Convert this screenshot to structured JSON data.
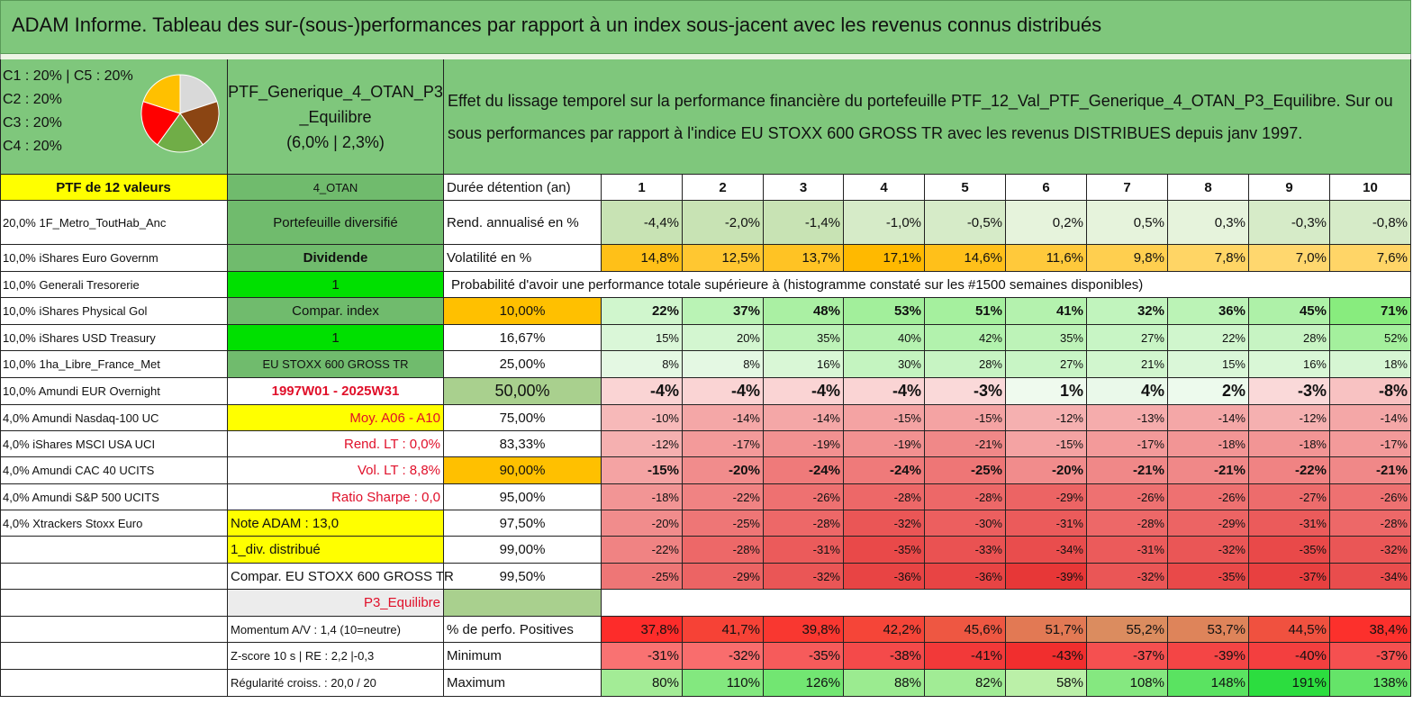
{
  "title": "ADAM Informe. Tableau des sur-(sous-)performances par rapport à un index sous-jacent avec les revenus connus distribués",
  "pie": {
    "legend": [
      "C1 : 20% | C5 : 20%",
      "C2 : 20%",
      "C3 : 20%",
      "C4 : 20%"
    ],
    "slices": [
      {
        "value": 20,
        "color": "#d9d9d9"
      },
      {
        "value": 20,
        "color": "#8b4513"
      },
      {
        "value": 20,
        "color": "#70ad47"
      },
      {
        "value": 20,
        "color": "#ff0000"
      },
      {
        "value": 20,
        "color": "#ffc000"
      }
    ]
  },
  "portfolio": {
    "name_line1": "PTF_Generique_4_OTAN_P3",
    "name_line2": "_Equilibre",
    "name_line3": "(6,0% | 2,3%)"
  },
  "description": "Effet du lissage temporel sur la performance financière du portefeuille PTF_12_Val_PTF_Generique_4_OTAN_P3_Equilibre. Sur ou sous performances par rapport à l'indice EU STOXX 600 GROSS TR avec les revenus DISTRIBUES depuis janv 1997.",
  "holdings_header": "PTF de 12 valeurs",
  "holdings": [
    "20,0% 1F_Metro_ToutHab_Anc",
    "10,0% iShares Euro Governm",
    "10,0% Generali Tresorerie",
    "10,0% iShares Physical Gol",
    "10,0% iShares USD Treasury",
    "10,0% 1ha_Libre_France_Met",
    "10,0% Amundi EUR Overnight",
    "4,0% Amundi Nasdaq-100 UC",
    "4,0% iShares MSCI USA UCI",
    "4,0% Amundi CAC 40 UCITS",
    "4,0% Amundi S&P 500 UCITS",
    "4,0% Xtrackers Stoxx Euro"
  ],
  "info": [
    "4_OTAN",
    "Portefeuille diversifié",
    "Dividende",
    "1",
    "Compar. index",
    "1",
    "EU STOXX 600 GROSS TR",
    "1997W01 - 2025W31",
    "Moy. A06 - A10",
    "Rend. LT : 0,0%",
    "Vol. LT : 8,8%",
    "Ratio Sharpe : 0,0",
    "Note ADAM : 13,0",
    "1_div. distribué",
    "Compar. EU STOXX 600 GROSS TR",
    "P3_Equilibre",
    "Momentum A/V : 1,4 (10=neutre)",
    "Z-score 10 s | RE : 2,2 |-0,3",
    "Régularité croiss. : 20,0 / 20"
  ],
  "table": {
    "years_label": "Durée détention (an)",
    "years": [
      "1",
      "2",
      "3",
      "4",
      "5",
      "6",
      "7",
      "8",
      "9",
      "10"
    ],
    "rend_label": "Rend. annualisé en %",
    "rend": [
      "-4,4%",
      "-2,0%",
      "-1,4%",
      "-1,0%",
      "-0,5%",
      "0,2%",
      "0,5%",
      "0,3%",
      "-0,3%",
      "-0,8%"
    ],
    "vol_label": "Volatilité en %",
    "vol": [
      "14,8%",
      "12,5%",
      "13,7%",
      "17,1%",
      "14,6%",
      "11,6%",
      "9,8%",
      "7,8%",
      "7,0%",
      "7,6%"
    ],
    "prob_label": "Probabilité d'avoir une performance totale supérieure à (histogramme constaté sur les #1500 semaines disponibles)",
    "quantiles": [
      "10,00%",
      "16,67%",
      "25,00%",
      "50,00%",
      "75,00%",
      "83,33%",
      "90,00%",
      "95,00%",
      "97,50%",
      "99,00%",
      "99,50%"
    ],
    "quantile_rows": [
      [
        "22%",
        "37%",
        "48%",
        "53%",
        "51%",
        "41%",
        "32%",
        "36%",
        "45%",
        "71%"
      ],
      [
        "15%",
        "20%",
        "35%",
        "40%",
        "42%",
        "35%",
        "27%",
        "22%",
        "28%",
        "52%"
      ],
      [
        "8%",
        "8%",
        "16%",
        "30%",
        "28%",
        "27%",
        "21%",
        "15%",
        "16%",
        "18%"
      ],
      [
        "-4%",
        "-4%",
        "-4%",
        "-4%",
        "-3%",
        "1%",
        "4%",
        "2%",
        "-3%",
        "-8%"
      ],
      [
        "-10%",
        "-14%",
        "-14%",
        "-15%",
        "-15%",
        "-12%",
        "-13%",
        "-14%",
        "-12%",
        "-14%"
      ],
      [
        "-12%",
        "-17%",
        "-19%",
        "-19%",
        "-21%",
        "-15%",
        "-17%",
        "-18%",
        "-18%",
        "-17%"
      ],
      [
        "-15%",
        "-20%",
        "-24%",
        "-24%",
        "-25%",
        "-20%",
        "-21%",
        "-21%",
        "-22%",
        "-21%"
      ],
      [
        "-18%",
        "-22%",
        "-26%",
        "-28%",
        "-28%",
        "-29%",
        "-26%",
        "-26%",
        "-27%",
        "-26%"
      ],
      [
        "-20%",
        "-25%",
        "-28%",
        "-32%",
        "-30%",
        "-31%",
        "-28%",
        "-29%",
        "-31%",
        "-28%"
      ],
      [
        "-22%",
        "-28%",
        "-31%",
        "-35%",
        "-33%",
        "-34%",
        "-31%",
        "-32%",
        "-35%",
        "-32%"
      ],
      [
        "-25%",
        "-29%",
        "-32%",
        "-36%",
        "-36%",
        "-39%",
        "-32%",
        "-35%",
        "-37%",
        "-34%"
      ]
    ],
    "positives_label": "% de perfo. Positives",
    "positives": [
      "37,8%",
      "41,7%",
      "39,8%",
      "42,2%",
      "45,6%",
      "51,7%",
      "55,2%",
      "53,7%",
      "44,5%",
      "38,4%"
    ],
    "min_label": "Minimum",
    "min": [
      "-31%",
      "-32%",
      "-35%",
      "-38%",
      "-41%",
      "-43%",
      "-37%",
      "-39%",
      "-40%",
      "-37%"
    ],
    "max_label": "Maximum",
    "max": [
      "80%",
      "110%",
      "126%",
      "88%",
      "82%",
      "58%",
      "108%",
      "148%",
      "191%",
      "138%"
    ]
  },
  "colors": {
    "header_green": "#7fc77c",
    "mid_green": "#70bb6d",
    "bright_green": "#00e000",
    "yellow": "#ffff00",
    "orange": "#ffc000",
    "red_text": "#e0102a"
  }
}
